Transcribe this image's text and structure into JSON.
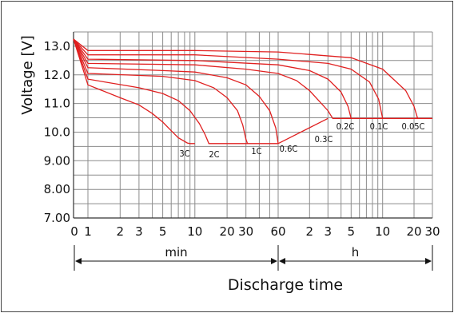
{
  "chart_data": {
    "type": "line",
    "title": "",
    "ylabel": "Voltage  [V]",
    "xlabel": "Discharge time",
    "ylim": [
      7.0,
      13.5
    ],
    "y_ticks": [
      "13.0",
      "12.0",
      "11.0",
      "10.0",
      "9.00",
      "8.00",
      "7.00"
    ],
    "y_tick_values": [
      13.0,
      12.0,
      11.0,
      10.0,
      9.0,
      8.0,
      7.0
    ],
    "x_tick_labels": [
      "0",
      "1",
      "2",
      "3",
      "5",
      "10",
      "20",
      "30",
      "60",
      "2",
      "3",
      "5",
      "10",
      "20",
      "30"
    ],
    "x_tick_minutes": [
      0,
      1,
      2,
      3,
      5,
      10,
      20,
      30,
      60,
      120,
      180,
      300,
      600,
      1200,
      1800
    ],
    "x_scale": "log",
    "x_units": "minutes",
    "ranges": [
      {
        "label": "min",
        "from_min": 1,
        "to_min": 60
      },
      {
        "label": "h",
        "from_min": 60,
        "to_min": 1800
      }
    ],
    "grid": true,
    "series": [
      {
        "name": "3C",
        "color": "#e02020",
        "points": [
          [
            0.6,
            13.25
          ],
          [
            1,
            11.65
          ],
          [
            2,
            11.2
          ],
          [
            3,
            10.95
          ],
          [
            4,
            10.65
          ],
          [
            5,
            10.35
          ],
          [
            6,
            10.05
          ],
          [
            7,
            9.8
          ],
          [
            8.5,
            9.62
          ],
          [
            9,
            9.6
          ],
          [
            10,
            9.6
          ]
        ]
      },
      {
        "name": "2C",
        "color": "#e02020",
        "points": [
          [
            0.6,
            13.25
          ],
          [
            1,
            11.85
          ],
          [
            3,
            11.55
          ],
          [
            5,
            11.35
          ],
          [
            7,
            11.1
          ],
          [
            9,
            10.75
          ],
          [
            11,
            10.3
          ],
          [
            12.5,
            9.9
          ],
          [
            13.5,
            9.6
          ],
          [
            60,
            9.6
          ]
        ]
      },
      {
        "name": "1C",
        "color": "#e02020",
        "points": [
          [
            0.6,
            13.25
          ],
          [
            1,
            12.05
          ],
          [
            5,
            11.95
          ],
          [
            10,
            11.8
          ],
          [
            15,
            11.55
          ],
          [
            20,
            11.2
          ],
          [
            25,
            10.75
          ],
          [
            28,
            10.25
          ],
          [
            30,
            9.75
          ],
          [
            31,
            9.6
          ]
        ]
      },
      {
        "name": "0.6C",
        "color": "#e02020",
        "points": [
          [
            0.6,
            13.25
          ],
          [
            1,
            12.25
          ],
          [
            5,
            12.15
          ],
          [
            10,
            12.1
          ],
          [
            20,
            11.9
          ],
          [
            30,
            11.65
          ],
          [
            40,
            11.25
          ],
          [
            50,
            10.75
          ],
          [
            57,
            10.15
          ],
          [
            60,
            9.6
          ],
          [
            180,
            10.48
          ]
        ]
      },
      {
        "name": "0.3C",
        "color": "#e02020",
        "points": [
          [
            0.6,
            13.25
          ],
          [
            1,
            12.4
          ],
          [
            10,
            12.35
          ],
          [
            30,
            12.2
          ],
          [
            60,
            12.05
          ],
          [
            90,
            11.8
          ],
          [
            120,
            11.45
          ],
          [
            180,
            10.75
          ],
          [
            200,
            10.48
          ],
          [
            1800,
            10.48
          ]
        ]
      },
      {
        "name": "0.2C",
        "color": "#e02020",
        "points": [
          [
            0.6,
            13.25
          ],
          [
            1,
            12.55
          ],
          [
            10,
            12.5
          ],
          [
            60,
            12.35
          ],
          [
            120,
            12.15
          ],
          [
            180,
            11.85
          ],
          [
            240,
            11.4
          ],
          [
            280,
            10.9
          ],
          [
            300,
            10.48
          ]
        ]
      },
      {
        "name": "0.1C",
        "color": "#e02020",
        "points": [
          [
            0.6,
            13.25
          ],
          [
            1,
            12.7
          ],
          [
            10,
            12.7
          ],
          [
            60,
            12.55
          ],
          [
            180,
            12.4
          ],
          [
            300,
            12.2
          ],
          [
            450,
            11.75
          ],
          [
            550,
            11.15
          ],
          [
            600,
            10.48
          ]
        ]
      },
      {
        "name": "0.05C",
        "color": "#e02020",
        "points": [
          [
            0.6,
            13.25
          ],
          [
            1,
            12.85
          ],
          [
            10,
            12.85
          ],
          [
            60,
            12.8
          ],
          [
            300,
            12.6
          ],
          [
            600,
            12.2
          ],
          [
            1000,
            11.45
          ],
          [
            1200,
            10.9
          ],
          [
            1300,
            10.48
          ]
        ]
      }
    ]
  }
}
